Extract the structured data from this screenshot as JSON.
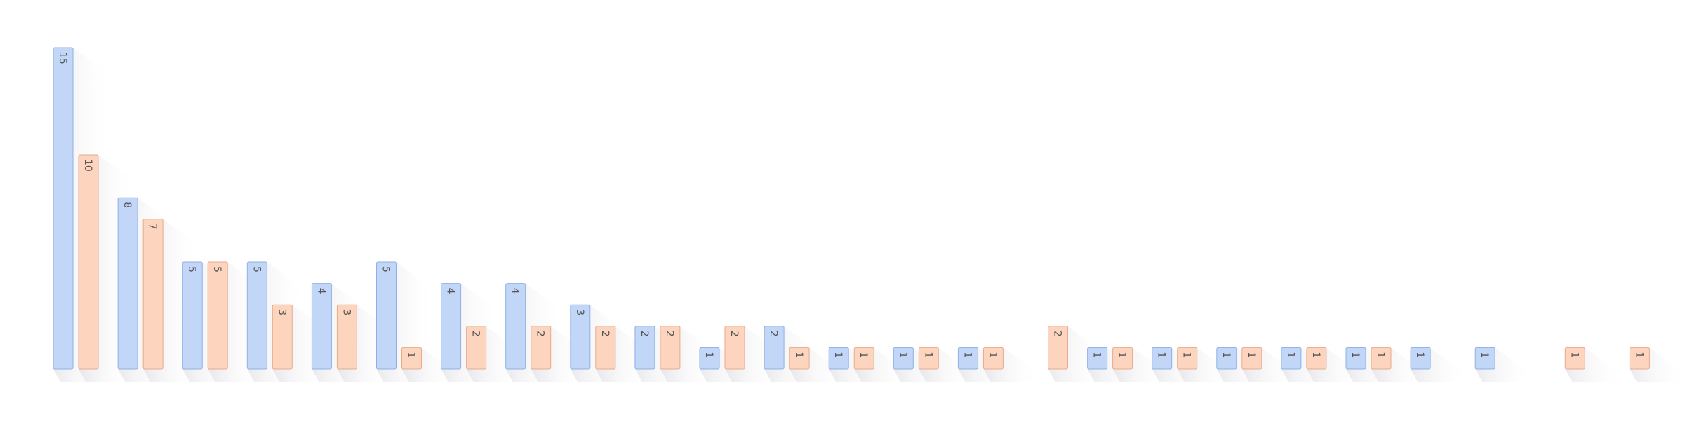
{
  "chart_data": {
    "type": "bar",
    "title": "",
    "xlabel": "",
    "ylabel": "",
    "ylim": [
      0,
      15
    ],
    "grid": false,
    "legend": "none",
    "series_colors": [
      {
        "fill": "#c2d6f7",
        "stroke": "#8fb0e6"
      },
      {
        "fill": "#fdd5bf",
        "stroke": "#e7aa8a"
      }
    ],
    "groups": [
      [
        15,
        10
      ],
      [
        8,
        7
      ],
      [
        5,
        5
      ],
      [
        5,
        3
      ],
      [
        4,
        3
      ],
      [
        5,
        1
      ],
      [
        4,
        2
      ],
      [
        4,
        2
      ],
      [
        3,
        2
      ],
      [
        2,
        2
      ],
      [
        1,
        2
      ],
      [
        2,
        1
      ],
      [
        1,
        1
      ],
      [
        1,
        1
      ],
      [
        1,
        1
      ],
      [
        null,
        2
      ],
      [
        1,
        1
      ],
      [
        1,
        1
      ],
      [
        1,
        1
      ],
      [
        1,
        1
      ],
      [
        1,
        1
      ],
      [
        1,
        null
      ],
      [
        1,
        null
      ],
      [
        null,
        1
      ],
      [
        null,
        1
      ]
    ]
  }
}
